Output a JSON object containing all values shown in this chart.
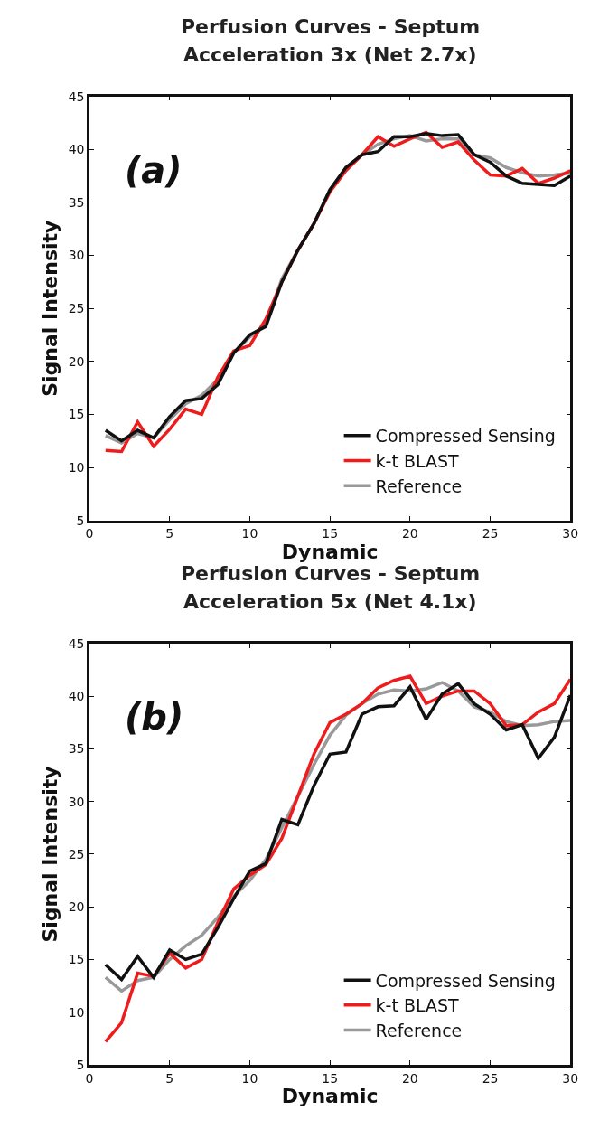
{
  "chart_data": [
    {
      "type": "line",
      "title": "Perfusion Curves - Septum",
      "subtitle": "Acceleration 3x (Net 2.7x)",
      "xlabel": "Dynamic",
      "ylabel": "Signal Intensity",
      "annotations": [
        "(a)"
      ],
      "x": [
        1,
        2,
        3,
        4,
        5,
        6,
        7,
        8,
        9,
        10,
        11,
        12,
        13,
        14,
        15,
        16,
        17,
        18,
        19,
        20,
        21,
        22,
        23,
        24,
        25,
        26,
        27,
        28,
        29,
        30
      ],
      "xlim": [
        0,
        30
      ],
      "xticks": [
        0,
        5,
        10,
        15,
        20,
        25,
        30
      ],
      "ylim": [
        5,
        45
      ],
      "yticks": [
        5,
        10,
        15,
        20,
        25,
        30,
        35,
        40,
        45
      ],
      "legend": "bottom right",
      "marker": "none",
      "line_style": "solid",
      "series": [
        {
          "name": "Reference",
          "color": "#999999",
          "values": [
            13,
            12.3,
            13.2,
            12.8,
            14.5,
            16,
            16.8,
            18.3,
            20.8,
            22.3,
            23.5,
            27.8,
            30.5,
            33,
            36.2,
            38.2,
            39.5,
            40.5,
            41,
            41.3,
            40.8,
            41,
            41,
            39.5,
            39.2,
            38.3,
            37.8,
            37.5,
            37.6,
            37.8
          ]
        },
        {
          "name": "k-t BLAST",
          "color": "#ee1c1c",
          "values": [
            11.6,
            11.5,
            14.3,
            12,
            13.6,
            15.5,
            15,
            18.5,
            21,
            21.5,
            24,
            27.5,
            30.5,
            33,
            36,
            38,
            39.5,
            41.2,
            40.3,
            41,
            41.6,
            40.2,
            40.7,
            39,
            37.6,
            37.5,
            38.2,
            36.8,
            37.3,
            38
          ]
        },
        {
          "name": "Compressed Sensing",
          "color": "#111111",
          "values": [
            13.5,
            12.5,
            13.5,
            12.8,
            14.8,
            16.3,
            16.5,
            17.8,
            20.8,
            22.5,
            23.3,
            27.5,
            30.5,
            33,
            36.2,
            38.3,
            39.5,
            39.8,
            41.2,
            41.2,
            41.5,
            41.3,
            41.4,
            39.5,
            38.8,
            37.5,
            36.8,
            36.7,
            36.6,
            37.5
          ]
        }
      ]
    },
    {
      "type": "line",
      "title": "Perfusion Curves - Septum",
      "subtitle": "Acceleration 5x (Net 4.1x)",
      "xlabel": "Dynamic",
      "ylabel": "Signal Intensity",
      "annotations": [
        "(b)"
      ],
      "x": [
        1,
        2,
        3,
        4,
        5,
        6,
        7,
        8,
        9,
        10,
        11,
        12,
        13,
        14,
        15,
        16,
        17,
        18,
        19,
        20,
        21,
        22,
        23,
        24,
        25,
        26,
        27,
        28,
        29,
        30
      ],
      "xlim": [
        0,
        30
      ],
      "xticks": [
        0,
        5,
        10,
        15,
        20,
        25,
        30
      ],
      "ylim": [
        5,
        45
      ],
      "yticks": [
        5,
        10,
        15,
        20,
        25,
        30,
        35,
        40,
        45
      ],
      "legend": "bottom right",
      "marker": "none",
      "line_style": "solid",
      "series": [
        {
          "name": "Reference",
          "color": "#999999",
          "values": [
            13.3,
            12,
            13,
            13.3,
            15,
            16.3,
            17.3,
            19,
            21,
            22.5,
            24.5,
            27.5,
            30.5,
            33.5,
            36.3,
            38.2,
            39.3,
            40.2,
            40.6,
            40.5,
            40.7,
            41.3,
            40.5,
            39,
            38.5,
            37.6,
            37.2,
            37.3,
            37.6,
            37.7
          ]
        },
        {
          "name": "k-t BLAST",
          "color": "#ee1c1c",
          "values": [
            7.2,
            9,
            13.7,
            13.4,
            15.6,
            14.2,
            15,
            18.5,
            21.7,
            23,
            24,
            26.5,
            30.5,
            34.5,
            37.5,
            38.3,
            39.3,
            40.8,
            41.5,
            41.9,
            39.3,
            40,
            40.5,
            40.5,
            39.3,
            37.2,
            37.3,
            38.5,
            39.3,
            41.6
          ]
        },
        {
          "name": "Compressed Sensing",
          "color": "#111111",
          "values": [
            14.5,
            13.1,
            15.3,
            13.3,
            15.9,
            15,
            15.5,
            18,
            20.8,
            23.4,
            24.1,
            28.3,
            27.8,
            31.5,
            34.5,
            34.7,
            38.3,
            39,
            39.1,
            40.9,
            37.8,
            40.2,
            41.2,
            39.3,
            38.3,
            36.8,
            37.3,
            34.1,
            36.1,
            40.1
          ]
        }
      ]
    }
  ]
}
